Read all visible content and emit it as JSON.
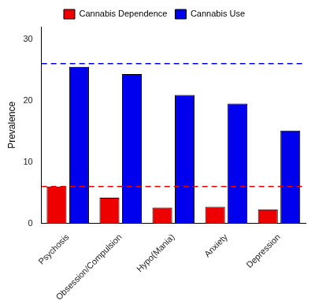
{
  "chart_data": {
    "type": "bar",
    "categories": [
      "Psychosis",
      "Obsession/Compulsion",
      "Hypo(Mania)",
      "Anxiety",
      "Depression"
    ],
    "series": [
      {
        "name": "Cannabis Dependence",
        "color": "#ee0000",
        "values": [
          6.0,
          4.2,
          2.6,
          2.7,
          2.3
        ]
      },
      {
        "name": "Cannabis Use",
        "color": "#0000ee",
        "values": [
          25.5,
          24.3,
          20.9,
          19.5,
          15.1
        ]
      }
    ],
    "y_label": "Prevalence",
    "ylim": [
      0,
      32
    ],
    "yticks": [
      0,
      10,
      20,
      30
    ],
    "hlines": [
      {
        "value": 6.0,
        "color": "#ee0000",
        "line_style": "dashed"
      },
      {
        "value": 26.0,
        "color": "#0000ee",
        "line_style": "dashed"
      }
    ],
    "grid": false,
    "legend": "top"
  }
}
